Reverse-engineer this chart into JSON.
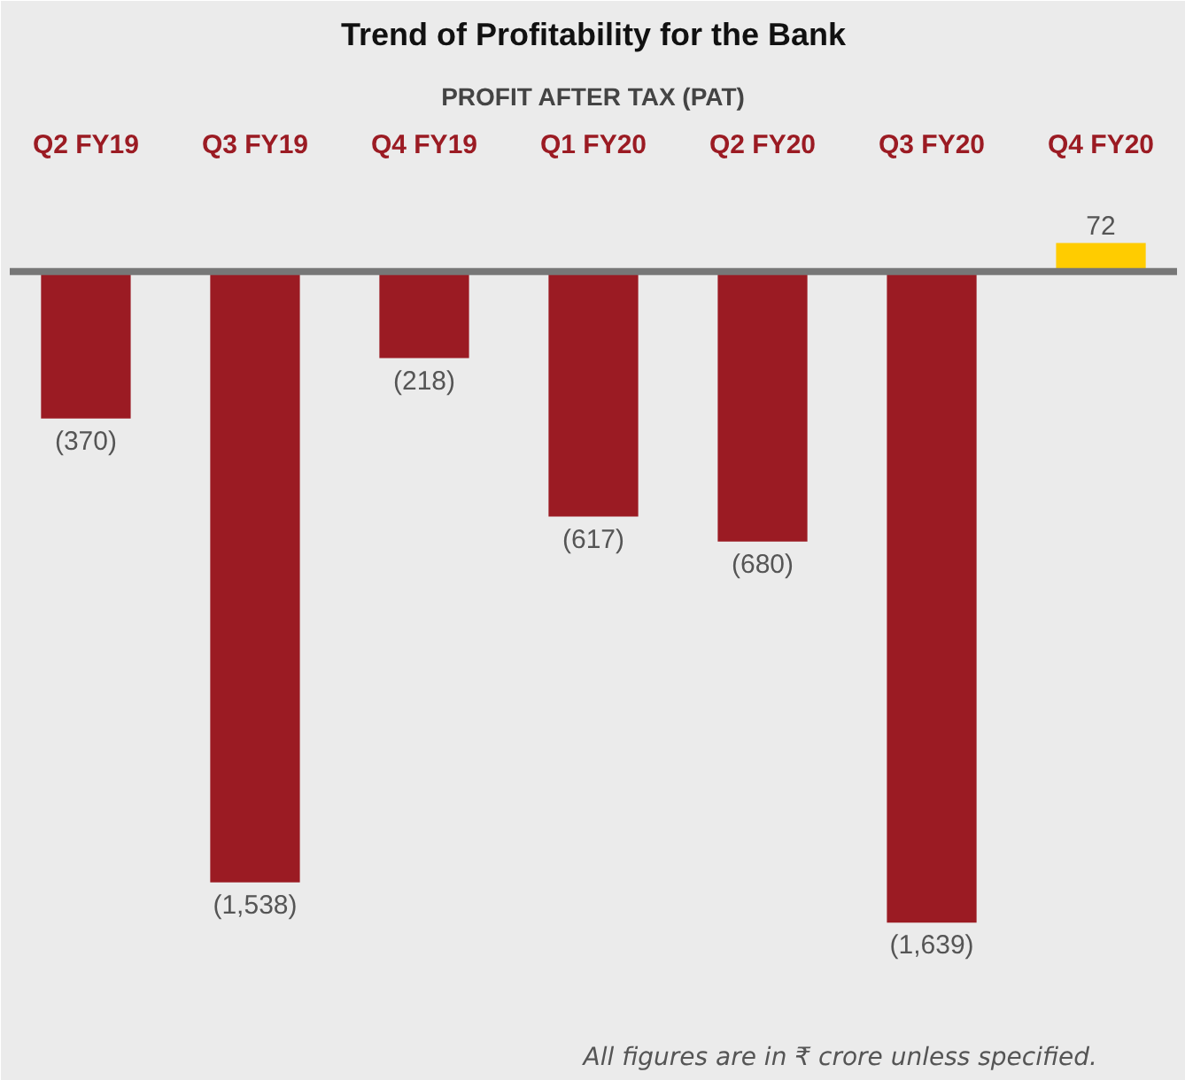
{
  "chart_data": {
    "type": "bar",
    "title": "Trend of Profitability for the Bank",
    "subtitle": "PROFIT AFTER TAX (PAT)",
    "categories": [
      "Q2 FY19",
      "Q3 FY19",
      "Q4 FY19",
      "Q1 FY20",
      "Q2 FY20",
      "Q3 FY20",
      "Q4 FY20"
    ],
    "values": [
      -370,
      -1538,
      -218,
      -617,
      -680,
      -1639,
      72
    ],
    "colors": [
      "#9b1b23",
      "#9b1b23",
      "#9b1b23",
      "#9b1b23",
      "#9b1b23",
      "#9b1b23",
      "#ffcc00"
    ],
    "value_labels": [
      "(370)",
      "(1,538)",
      "(218)",
      "(617)",
      "(680)",
      "(1,639)",
      "72"
    ],
    "annotations": [
      "All figures are in ₹ crore unless specified."
    ]
  }
}
